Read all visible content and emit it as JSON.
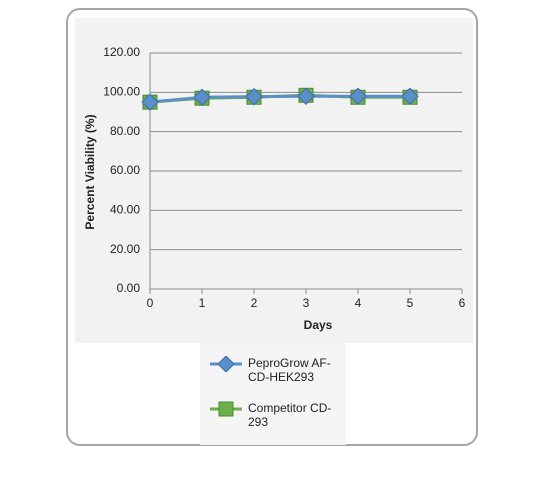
{
  "chart_data": {
    "type": "line",
    "x_label": "Days",
    "y_label": "Percent Viability (%)",
    "x": [
      0,
      1,
      2,
      3,
      4,
      5
    ],
    "series": [
      {
        "name": "PeproGrow AF-CD-HEK293",
        "color": "#5b8fc9",
        "marker": "diamond",
        "values": [
          95,
          97.5,
          97.8,
          98,
          98,
          98
        ]
      },
      {
        "name": "Competitor CD-293",
        "color": "#6aaf4c",
        "marker": "square",
        "values": [
          95,
          97,
          97.5,
          98.5,
          97.5,
          97.5
        ]
      }
    ],
    "xlim": [
      0,
      6
    ],
    "xticks": [
      0,
      1,
      2,
      3,
      4,
      5,
      6
    ],
    "ylim": [
      0,
      120
    ],
    "yticks": [
      {
        "value": 0,
        "label": "0.00"
      },
      {
        "value": 20,
        "label": "20.00"
      },
      {
        "value": 40,
        "label": "40.00"
      },
      {
        "value": 60,
        "label": "60.00"
      },
      {
        "value": 80,
        "label": "80.00"
      },
      {
        "value": 100,
        "label": "100.00"
      },
      {
        "value": 120,
        "label": "120.00"
      }
    ],
    "grid": true
  }
}
